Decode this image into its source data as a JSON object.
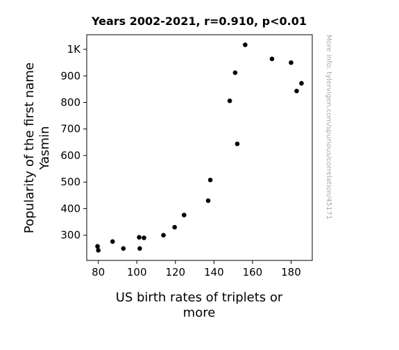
{
  "chart_data": {
    "type": "scatter",
    "title": "Years 2002-2021, r=0.910, p<0.01",
    "xlabel": [
      "US birth rates of triplets or",
      "more"
    ],
    "ylabel": [
      "Popularity of the first name",
      "Yasmin"
    ],
    "watermark": "More info: tylervigen.com/spurious/correlation/45171",
    "xlim": [
      74,
      191
    ],
    "ylim": [
      205,
      1055
    ],
    "xticks": [
      {
        "value": 80,
        "label": "80"
      },
      {
        "value": 100,
        "label": "100"
      },
      {
        "value": 120,
        "label": "120"
      },
      {
        "value": 140,
        "label": "140"
      },
      {
        "value": 160,
        "label": "160"
      },
      {
        "value": 180,
        "label": "180"
      }
    ],
    "yticks": [
      {
        "value": 300,
        "label": "300"
      },
      {
        "value": 400,
        "label": "400"
      },
      {
        "value": 500,
        "label": "500"
      },
      {
        "value": 600,
        "label": "600"
      },
      {
        "value": 700,
        "label": "700"
      },
      {
        "value": 800,
        "label": "800"
      },
      {
        "value": 900,
        "label": "900"
      },
      {
        "value": 1000,
        "label": "1K"
      }
    ],
    "grid": false,
    "legend": null,
    "marker_color": "#000000",
    "points": [
      {
        "x": 79.6,
        "y": 258
      },
      {
        "x": 80.0,
        "y": 243
      },
      {
        "x": 87.4,
        "y": 276
      },
      {
        "x": 93.0,
        "y": 250
      },
      {
        "x": 101.2,
        "y": 292
      },
      {
        "x": 101.5,
        "y": 250
      },
      {
        "x": 103.7,
        "y": 290
      },
      {
        "x": 113.8,
        "y": 300
      },
      {
        "x": 119.6,
        "y": 330
      },
      {
        "x": 124.5,
        "y": 376
      },
      {
        "x": 137.0,
        "y": 430
      },
      {
        "x": 138.1,
        "y": 508
      },
      {
        "x": 148.2,
        "y": 806
      },
      {
        "x": 151.0,
        "y": 912
      },
      {
        "x": 152.1,
        "y": 644
      },
      {
        "x": 156.2,
        "y": 1017
      },
      {
        "x": 170.1,
        "y": 964
      },
      {
        "x": 180.0,
        "y": 950
      },
      {
        "x": 182.9,
        "y": 843
      },
      {
        "x": 185.4,
        "y": 872
      }
    ]
  }
}
